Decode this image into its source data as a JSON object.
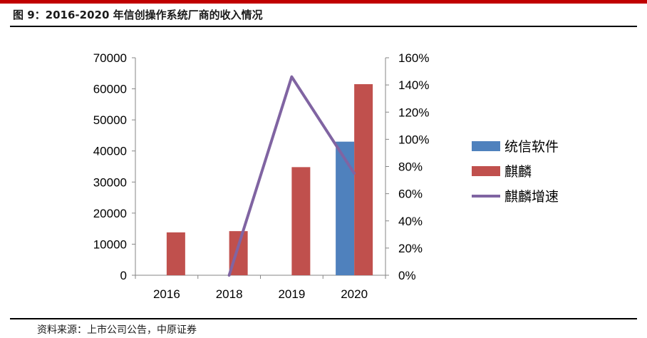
{
  "figure": {
    "title": "图 9：2016-2020 年信创操作系统厂商的收入情况",
    "source": "资料来源：上市公司公告，中原证券"
  },
  "chart_data": {
    "type": "bar",
    "categories": [
      "2016",
      "2018",
      "2019",
      "2020"
    ],
    "series": [
      {
        "name": "统信软件",
        "kind": "bar",
        "axis": "left",
        "color": "#4f81bd",
        "values": [
          null,
          null,
          null,
          43000
        ]
      },
      {
        "name": "麒麟",
        "kind": "bar",
        "axis": "left",
        "color": "#c0504d",
        "values": [
          13800,
          14200,
          34800,
          61500
        ]
      },
      {
        "name": "麒麟增速",
        "kind": "line",
        "axis": "right",
        "color": "#8064a2",
        "values": [
          null,
          0,
          146,
          75
        ]
      }
    ],
    "y_left": {
      "min": 0,
      "max": 70000,
      "ticks": [
        "0",
        "10000",
        "20000",
        "30000",
        "40000",
        "50000",
        "60000",
        "70000"
      ]
    },
    "y_right": {
      "min": 0,
      "max": 160,
      "ticks": [
        "0%",
        "20%",
        "40%",
        "60%",
        "80%",
        "100%",
        "120%",
        "140%",
        "160%"
      ]
    },
    "grid": false,
    "legend": "right"
  }
}
